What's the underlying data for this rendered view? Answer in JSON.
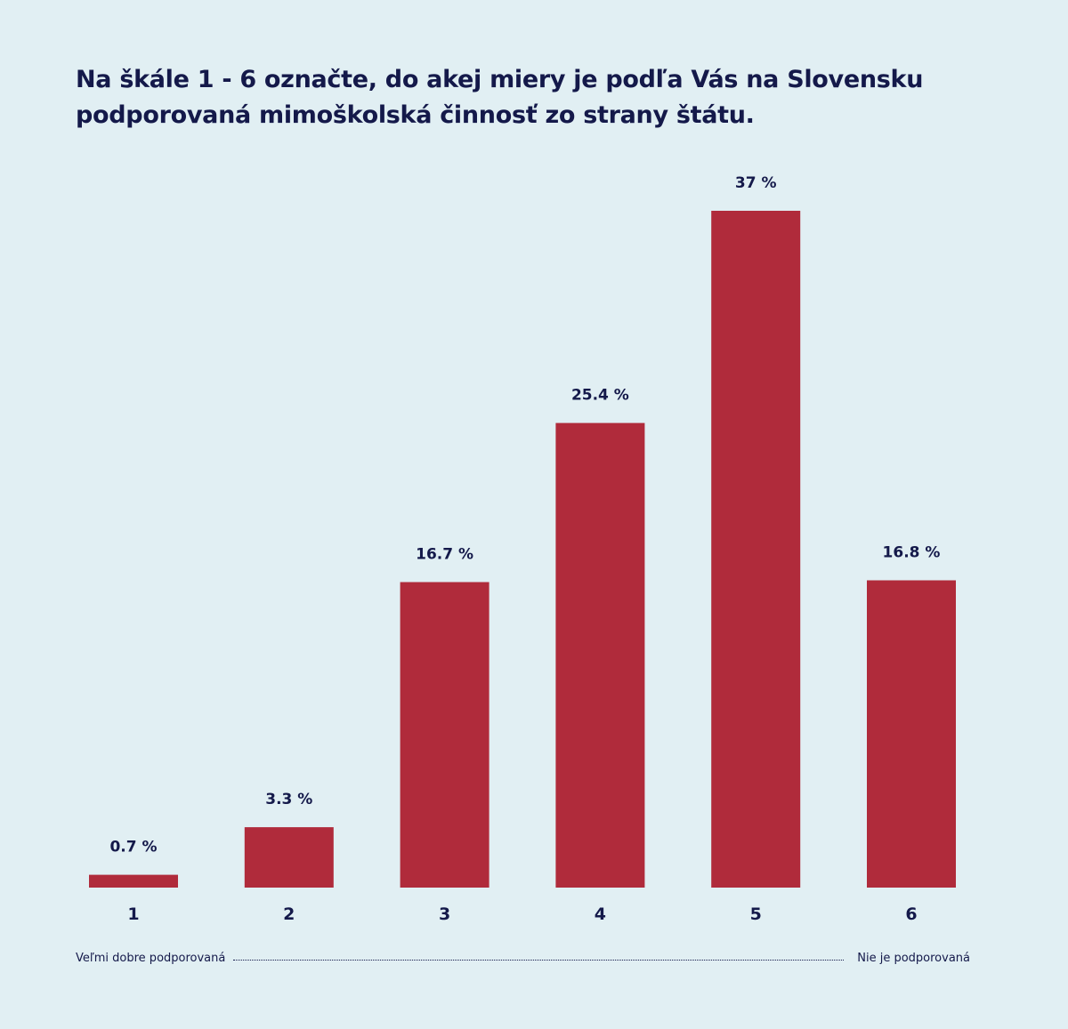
{
  "chart_data": {
    "type": "bar",
    "title": "Na škále 1 - 6 označte, do akej miery je podľa Vás na Slovensku podporovaná mimoškolská činnosť zo strany štátu.",
    "categories": [
      "1",
      "2",
      "3",
      "4",
      "5",
      "6"
    ],
    "values": [
      0.7,
      3.3,
      16.7,
      25.4,
      37,
      16.8
    ],
    "value_labels": [
      "0.7 %",
      "3.3 %",
      "16.7 %",
      "25.4 %",
      "37 %",
      "16.8 %"
    ],
    "xlabel": "",
    "ylabel": "",
    "ylim": [
      0,
      37
    ],
    "grid": false,
    "scale_labels": {
      "left": "Veľmi dobre podporovaná",
      "right": "Nie je podporovaná"
    }
  },
  "colors": {
    "background": "#e1eff3",
    "bar": "#b02b3b",
    "text": "#14194a"
  }
}
